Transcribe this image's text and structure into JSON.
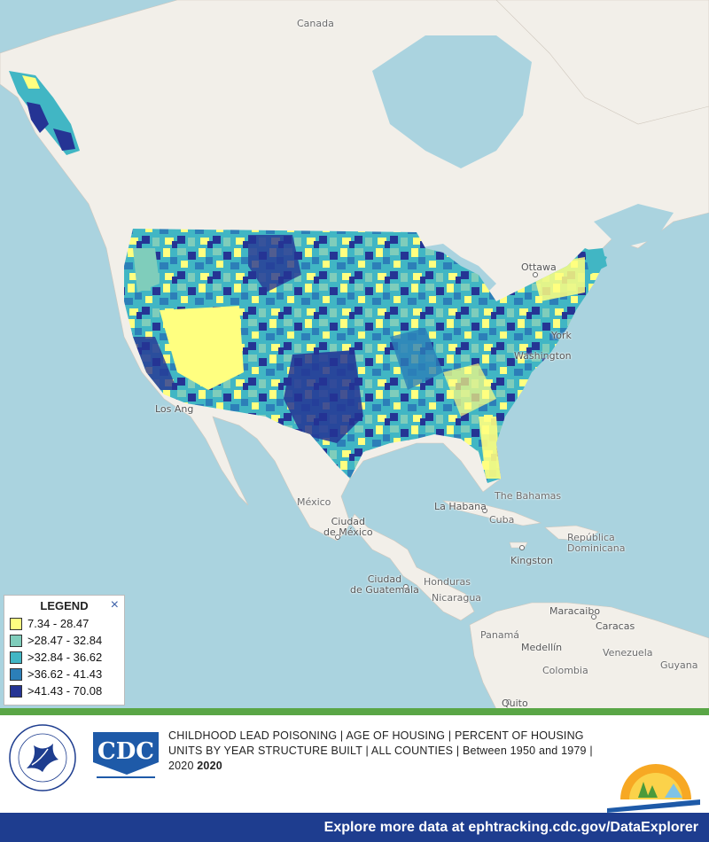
{
  "map": {
    "places": {
      "canada": "Canada",
      "ottawa": "Ottawa",
      "york": "York",
      "washington": "Washington",
      "los_angeles": "Los Ang",
      "mexico": "México",
      "ciudad_mexico": "Ciudad\nde México",
      "bahamas": "The Bahamas",
      "havana": "La Habana",
      "cuba": "Cuba",
      "republica": "República",
      "dominicana": "Dominicana",
      "kingston": "Kingston",
      "guatemala": "Ciudad\nde Guatemala",
      "honduras": "Honduras",
      "nicaragua": "Nicaragua",
      "panama": "Panamá",
      "maracaibo": "Maracaibo",
      "caracas": "Caracas",
      "medellin": "Medellín",
      "venezuela": "Venezuela",
      "colombia": "Colombia",
      "guyana": "Guyana",
      "quito": "Quito"
    },
    "colors": {
      "c1": "#ffff80",
      "c2": "#7fcdbb",
      "c3": "#41b6c4",
      "c4": "#2c7fb8",
      "c5": "#253494"
    }
  },
  "legend": {
    "title": "LEGEND",
    "close_label": "×",
    "items": [
      {
        "label": "7.34 - 28.47",
        "color": "#ffff80"
      },
      {
        "label": ">28.47 - 32.84",
        "color": "#7fcdbb"
      },
      {
        "label": ">32.84 - 36.62",
        "color": "#41b6c4"
      },
      {
        "label": ">36.62 - 41.43",
        "color": "#2c7fb8"
      },
      {
        "label": ">41.43 - 70.08",
        "color": "#253494"
      }
    ]
  },
  "footer": {
    "caption_main": "CHILDHOOD LEAD POISONING | AGE OF HOUSING | PERCENT OF HOUSING UNITS BY YEAR STRUCTURE BUILT | ALL COUNTIES | Between 1950 and 1979 | 2020 ",
    "caption_bold": "2020",
    "cdc_text": "CDC",
    "bottom_link": "Explore more data at ephtracking.cdc.gov/DataExplorer"
  }
}
